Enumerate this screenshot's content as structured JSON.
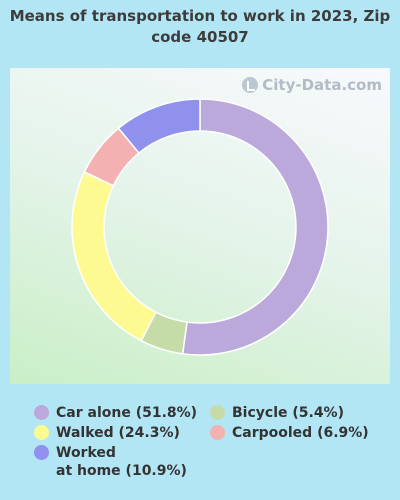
{
  "title": "Means of transportation to work in 2023, Zip code 40507",
  "watermark": "City-Data.com",
  "chart_data": {
    "type": "pie",
    "title": "Means of transportation to work in 2023, Zip code 40507",
    "slices": [
      {
        "label": "Car alone",
        "value": 51.8,
        "legend": "Car alone (51.8%)",
        "color": "#bca9db"
      },
      {
        "label": "Bicycle",
        "value": 5.4,
        "legend": "Bicycle (5.4%)",
        "color": "#c5dba8"
      },
      {
        "label": "Walked",
        "value": 24.3,
        "legend": "Walked (24.3%)",
        "color": "#fdfa92"
      },
      {
        "label": "Carpooled",
        "value": 6.9,
        "legend": "Carpooled (6.9%)",
        "color": "#f4b1b1"
      },
      {
        "label": "Worked at home",
        "value": 10.9,
        "legend": "Worked\nat home (10.9%)",
        "color": "#9091ed"
      }
    ]
  }
}
